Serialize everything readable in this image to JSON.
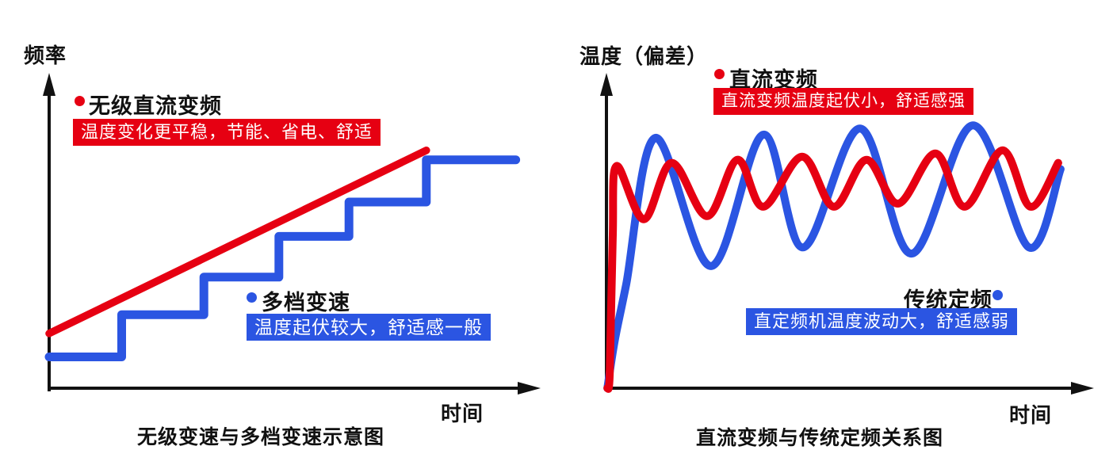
{
  "colors": {
    "red": "#e60012",
    "blue": "#2b55e2",
    "axis": "#111111",
    "banner_text": "#ffffff"
  },
  "chart_data": [
    {
      "type": "line",
      "title": "无级变速与多档变速示意图",
      "xlabel": "时间",
      "ylabel": "频率",
      "x_range": [
        0,
        100
      ],
      "y_range": [
        0,
        100
      ],
      "grid": false,
      "legend_position": "inline",
      "series": [
        {
          "name": "无级直流变频",
          "color": "red",
          "shape": "straight",
          "annotation": "温度变化更平稳，节能、省电、舒适",
          "points": [
            [
              0,
              17.5
            ],
            [
              78,
              76
            ]
          ]
        },
        {
          "name": "多档变速",
          "color": "blue",
          "shape": "steps",
          "annotation": "温度起伏较大，舒适感一般",
          "points": [
            [
              0,
              10
            ],
            [
              15,
              10
            ],
            [
              15,
              23.5
            ],
            [
              32,
              23.5
            ],
            [
              32,
              35.5
            ],
            [
              47.5,
              35.5
            ],
            [
              47.5,
              48.5
            ],
            [
              62,
              48.5
            ],
            [
              62,
              59.5
            ],
            [
              78,
              59.5
            ],
            [
              78,
              73
            ],
            [
              96.5,
              73
            ]
          ]
        }
      ]
    },
    {
      "type": "line",
      "title": "直流变频与传统定频关系图",
      "xlabel": "时间",
      "ylabel": "温度（偏差）",
      "x_range": [
        0,
        100
      ],
      "y_range": [
        0,
        100
      ],
      "grid": false,
      "legend_position": "inline",
      "series": [
        {
          "name": "直流变频",
          "color": "red",
          "shape": "smooth",
          "annotation": "直流变频温度起伏小，舒适感强",
          "points": [
            [
              0.2,
              0
            ],
            [
              0.7,
              5
            ],
            [
              1.3,
              48
            ],
            [
              2.1,
              71
            ],
            [
              7.8,
              54
            ],
            [
              13.6,
              72
            ],
            [
              21,
              55
            ],
            [
              27.3,
              73
            ],
            [
              32.7,
              58
            ],
            [
              40.8,
              74
            ],
            [
              47.4,
              58
            ],
            [
              54.2,
              73
            ],
            [
              60.8,
              59
            ],
            [
              68.6,
              75
            ],
            [
              74.7,
              58
            ],
            [
              82.6,
              76
            ],
            [
              88.4,
              58
            ],
            [
              94.2,
              72
            ]
          ]
        },
        {
          "name": "传统定频",
          "color": "blue",
          "shape": "smooth",
          "annotation": "直定频机温度波动大，舒适感弱",
          "points": [
            [
              0.2,
              0
            ],
            [
              1.7,
              15
            ],
            [
              4.1,
              33
            ],
            [
              10.2,
              80
            ],
            [
              21.8,
              39
            ],
            [
              32.7,
              81
            ],
            [
              41,
              45
            ],
            [
              52.9,
              83
            ],
            [
              63.6,
              43
            ],
            [
              76.4,
              84
            ],
            [
              88.1,
              45
            ],
            [
              94.7,
              70
            ]
          ]
        }
      ]
    }
  ]
}
